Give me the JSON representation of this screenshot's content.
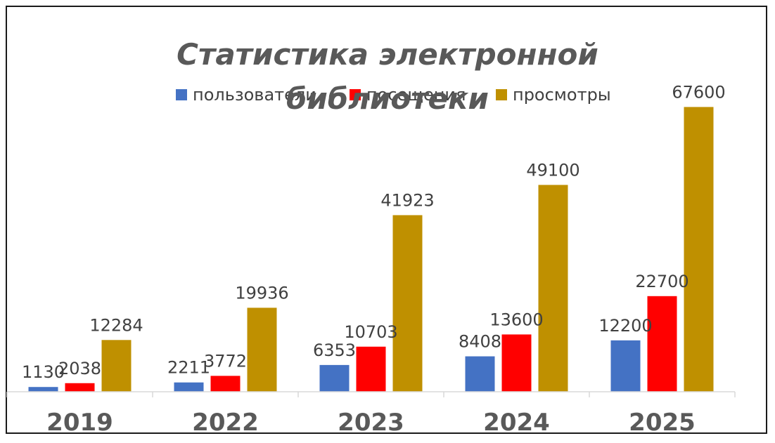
{
  "chart_data": {
    "type": "bar",
    "title": "Статистика электронной библиотеки",
    "title_lines": [
      "Статистика электронной",
      "библиотеки"
    ],
    "categories": [
      "2019",
      "2022",
      "2023",
      "2024",
      "2025"
    ],
    "series": [
      {
        "name": "пользователи",
        "color": "#4472c4",
        "values": [
          1130,
          2211,
          6353,
          8408,
          12200
        ]
      },
      {
        "name": "посещения",
        "color": "#ff0000",
        "values": [
          2038,
          3772,
          10703,
          13600,
          22700
        ]
      },
      {
        "name": "просмотры",
        "color": "#bf9000",
        "values": [
          12284,
          19936,
          41923,
          49100,
          67600
        ]
      }
    ],
    "ylim": [
      0,
      70000
    ],
    "grid": false,
    "legend_position": "top",
    "xlabel": "",
    "ylabel": ""
  }
}
